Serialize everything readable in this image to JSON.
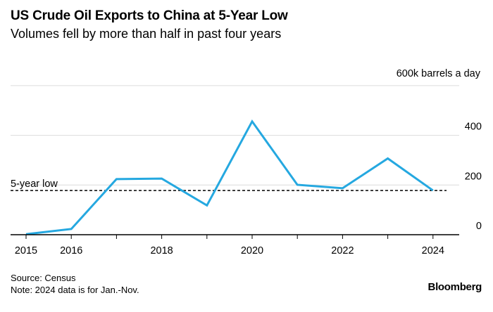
{
  "title": "US Crude Oil Exports to China at 5-Year Low",
  "subtitle": "Volumes fell by more than half in past four years",
  "source": "Source: Census",
  "note": "Note: 2024 data is for Jan.-Nov.",
  "brand": "Bloomberg",
  "chart_data": {
    "type": "line",
    "title": "US Crude Oil Exports to China at 5-Year Low",
    "subtitle": "Volumes fell by more than half in past four years",
    "unit_label": "600k barrels a day",
    "x": [
      2015,
      2016,
      2017,
      2018,
      2019,
      2020,
      2021,
      2022,
      2023,
      2024
    ],
    "series": [
      {
        "values": [
          2,
          23,
          224,
          226,
          118,
          456,
          201,
          187,
          307,
          178
        ],
        "color": "#25a8e0"
      }
    ],
    "x_ticks": [
      "2015",
      "2016",
      "2018",
      "2020",
      "2022",
      "2024"
    ],
    "y_ticks": [
      "0",
      "200",
      "400"
    ],
    "ylim": [
      0,
      600
    ],
    "y_axis_side": "right",
    "grid": true,
    "reference_line": {
      "label": "5-year low",
      "value": 178,
      "style": "dashed"
    }
  }
}
